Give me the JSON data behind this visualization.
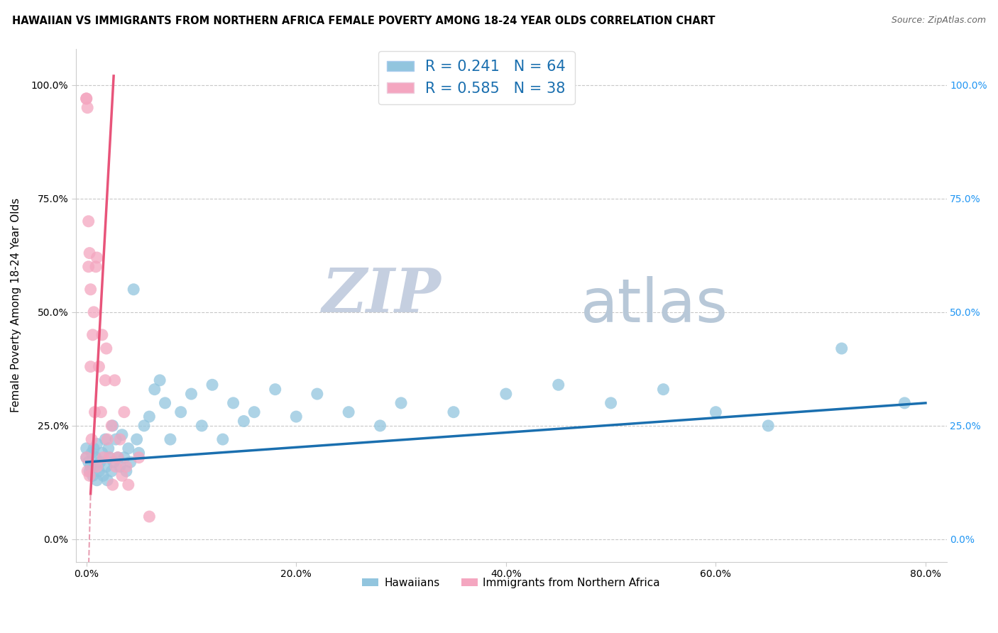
{
  "title": "HAWAIIAN VS IMMIGRANTS FROM NORTHERN AFRICA FEMALE POVERTY AMONG 18-24 YEAR OLDS CORRELATION CHART",
  "source": "Source: ZipAtlas.com",
  "ylabel": "Female Poverty Among 18-24 Year Olds",
  "x_tick_labels": [
    "0.0%",
    "20.0%",
    "40.0%",
    "60.0%",
    "80.0%"
  ],
  "x_tick_values": [
    0.0,
    0.2,
    0.4,
    0.6,
    0.8
  ],
  "y_tick_labels": [
    "0.0%",
    "25.0%",
    "50.0%",
    "75.0%",
    "100.0%"
  ],
  "y_tick_values": [
    0.0,
    0.25,
    0.5,
    0.75,
    1.0
  ],
  "xlim": [
    -0.01,
    0.82
  ],
  "ylim": [
    -0.05,
    1.08
  ],
  "hawaiian_R": 0.241,
  "hawaiian_N": 64,
  "northern_africa_R": 0.585,
  "northern_africa_N": 38,
  "hawaiian_color": "#92c5de",
  "northern_africa_color": "#f4a6c0",
  "hawaiian_line_color": "#1a6faf",
  "northern_africa_line_color": "#e8547a",
  "northern_africa_line_dashed_color": "#e8a0b4",
  "background_color": "#ffffff",
  "grid_color": "#c8c8c8",
  "watermark_zip": "ZIP",
  "watermark_atlas": "atlas",
  "watermark_color_zip": "#c5cfe0",
  "watermark_color_atlas": "#b8c8d8",
  "legend_label_hawaiian": "Hawaiians",
  "legend_label_na": "Immigrants from Northern Africa",
  "hawaiian_x": [
    0.0,
    0.0,
    0.002,
    0.003,
    0.004,
    0.005,
    0.006,
    0.007,
    0.008,
    0.009,
    0.01,
    0.01,
    0.012,
    0.013,
    0.015,
    0.016,
    0.018,
    0.019,
    0.02,
    0.021,
    0.022,
    0.024,
    0.025,
    0.026,
    0.028,
    0.03,
    0.032,
    0.034,
    0.036,
    0.038,
    0.04,
    0.042,
    0.045,
    0.048,
    0.05,
    0.055,
    0.06,
    0.065,
    0.07,
    0.075,
    0.08,
    0.09,
    0.1,
    0.11,
    0.12,
    0.13,
    0.14,
    0.15,
    0.16,
    0.18,
    0.2,
    0.22,
    0.25,
    0.28,
    0.3,
    0.35,
    0.4,
    0.45,
    0.5,
    0.55,
    0.6,
    0.65,
    0.72,
    0.78
  ],
  "hawaiian_y": [
    0.18,
    0.2,
    0.17,
    0.15,
    0.16,
    0.19,
    0.14,
    0.2,
    0.16,
    0.18,
    0.13,
    0.21,
    0.15,
    0.17,
    0.19,
    0.14,
    0.22,
    0.16,
    0.13,
    0.2,
    0.18,
    0.15,
    0.25,
    0.17,
    0.22,
    0.18,
    0.16,
    0.23,
    0.18,
    0.15,
    0.2,
    0.17,
    0.55,
    0.22,
    0.19,
    0.25,
    0.27,
    0.33,
    0.35,
    0.3,
    0.22,
    0.28,
    0.32,
    0.25,
    0.34,
    0.22,
    0.3,
    0.26,
    0.28,
    0.33,
    0.27,
    0.32,
    0.28,
    0.25,
    0.3,
    0.28,
    0.32,
    0.34,
    0.3,
    0.33,
    0.28,
    0.25,
    0.42,
    0.3
  ],
  "na_x": [
    0.0,
    0.0,
    0.0,
    0.001,
    0.001,
    0.002,
    0.002,
    0.003,
    0.003,
    0.004,
    0.004,
    0.005,
    0.006,
    0.007,
    0.008,
    0.009,
    0.01,
    0.01,
    0.012,
    0.014,
    0.015,
    0.016,
    0.018,
    0.019,
    0.02,
    0.022,
    0.024,
    0.025,
    0.027,
    0.028,
    0.03,
    0.032,
    0.034,
    0.036,
    0.038,
    0.04,
    0.05,
    0.06
  ],
  "na_y": [
    0.18,
    0.97,
    0.97,
    0.95,
    0.15,
    0.6,
    0.7,
    0.14,
    0.63,
    0.38,
    0.55,
    0.22,
    0.45,
    0.5,
    0.28,
    0.6,
    0.16,
    0.62,
    0.38,
    0.28,
    0.45,
    0.18,
    0.35,
    0.42,
    0.22,
    0.18,
    0.25,
    0.12,
    0.35,
    0.16,
    0.18,
    0.22,
    0.14,
    0.28,
    0.16,
    0.12,
    0.18,
    0.05
  ]
}
